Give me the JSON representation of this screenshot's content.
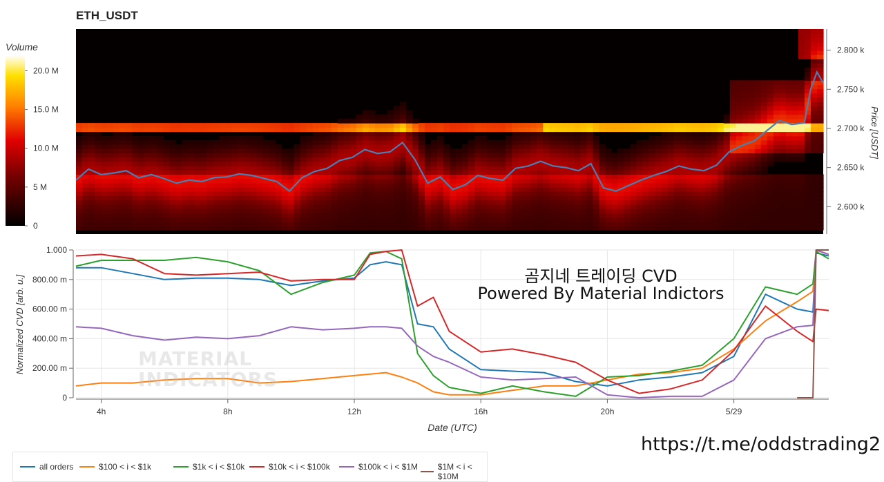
{
  "header": {
    "title": "ETH_USDT"
  },
  "overlay": {
    "line1": "곰지네 트레이딩 CVD",
    "line2": "Powered By Material Indictors",
    "url": "https://t.me/oddstrading2",
    "watermark_line1": "MATERIAL",
    "watermark_line2": "INDICATORS"
  },
  "colors": {
    "all_orders": "#1f77b4",
    "s100_1k": "#ff7f0e",
    "s1k_10k": "#2ca02c",
    "s10k_100k": "#d62728",
    "s100k_1M": "#9467bd",
    "s1M_10M": "#8c564b",
    "price_line": "#4a7fb5"
  },
  "chart_data": [
    {
      "type": "heatmap",
      "title": "ETH_USDT",
      "colorbar": {
        "label": "Volume",
        "ticks": [
          "20.0 M",
          "15.0 M",
          "10.0 M",
          "5 M",
          "0"
        ],
        "tick_values": [
          20000000,
          15000000,
          10000000,
          5000000,
          0
        ],
        "range": [
          0,
          22000000
        ]
      },
      "y_axis": {
        "label": "Price [USDT]",
        "ticks": [
          "2.800 k",
          "2.750 k",
          "2.700 k",
          "2.650 k",
          "2.600 k"
        ],
        "tick_values": [
          2800,
          2750,
          2700,
          2650,
          2600
        ],
        "range": [
          2565,
          2827
        ]
      },
      "x_range_hours": [
        3.2,
        27.0
      ],
      "price_series": {
        "x": [
          3.2,
          3.6,
          4.0,
          4.4,
          4.8,
          5.2,
          5.6,
          6.0,
          6.4,
          6.8,
          7.2,
          7.6,
          8.0,
          8.4,
          8.8,
          9.2,
          9.6,
          10.0,
          10.4,
          10.8,
          11.2,
          11.6,
          12.0,
          12.4,
          12.8,
          13.2,
          13.6,
          14.0,
          14.4,
          14.8,
          15.2,
          15.6,
          16.0,
          16.4,
          16.8,
          17.2,
          17.6,
          18.0,
          18.4,
          18.8,
          19.2,
          19.6,
          20.0,
          20.4,
          20.8,
          21.2,
          21.6,
          22.0,
          22.4,
          22.8,
          23.2,
          23.6,
          24.0,
          24.4,
          24.8,
          25.2,
          25.6,
          26.0,
          26.4,
          26.6,
          26.8,
          27.0
        ],
        "y": [
          2634,
          2648,
          2641,
          2643,
          2646,
          2637,
          2641,
          2636,
          2630,
          2634,
          2632,
          2637,
          2638,
          2642,
          2640,
          2636,
          2632,
          2620,
          2637,
          2645,
          2649,
          2659,
          2663,
          2673,
          2668,
          2670,
          2682,
          2660,
          2630,
          2638,
          2622,
          2628,
          2640,
          2636,
          2634,
          2649,
          2652,
          2658,
          2652,
          2650,
          2646,
          2655,
          2624,
          2620,
          2627,
          2634,
          2640,
          2645,
          2652,
          2648,
          2646,
          2653,
          2670,
          2678,
          2684,
          2697,
          2710,
          2705,
          2707,
          2750,
          2772,
          2758
        ]
      }
    },
    {
      "type": "line",
      "xlabel": "Date (UTC)",
      "ylabel": "Normalized CVD [arb. u.]",
      "x_ticks": [
        "4h",
        "8h",
        "12h",
        "16h",
        "20h",
        "5/29"
      ],
      "x_tick_values": [
        4,
        8,
        12,
        16,
        20,
        24
      ],
      "y_ticks": [
        "1.000",
        "800.00 m",
        "600.00 m",
        "400.00 m",
        "200.00 m",
        "0"
      ],
      "y_tick_values": [
        1.0,
        0.8,
        0.6,
        0.4,
        0.2,
        0
      ],
      "ylim": [
        0,
        1.0
      ],
      "xlim": [
        3.2,
        27.0
      ],
      "x": [
        3.2,
        4.0,
        5.0,
        6.0,
        7.0,
        8.0,
        9.0,
        10.0,
        11.0,
        12.0,
        12.5,
        13.0,
        13.5,
        14.0,
        14.5,
        15.0,
        16.0,
        17.0,
        18.0,
        19.0,
        20.0,
        21.0,
        22.0,
        23.0,
        24.0,
        25.0,
        26.0,
        26.5,
        26.6,
        27.0
      ],
      "series": [
        {
          "name": "all orders",
          "values": [
            0.88,
            0.88,
            0.84,
            0.8,
            0.81,
            0.81,
            0.8,
            0.76,
            0.79,
            0.81,
            0.9,
            0.92,
            0.9,
            0.5,
            0.48,
            0.33,
            0.19,
            0.18,
            0.17,
            0.11,
            0.08,
            0.12,
            0.14,
            0.17,
            0.28,
            0.7,
            0.6,
            0.58,
            0.98,
            0.96
          ]
        },
        {
          "name": "$100 < i < $1k",
          "values": [
            0.08,
            0.1,
            0.1,
            0.12,
            0.13,
            0.13,
            0.1,
            0.11,
            0.13,
            0.15,
            0.16,
            0.17,
            0.14,
            0.1,
            0.04,
            0.02,
            0.02,
            0.05,
            0.08,
            0.08,
            0.12,
            0.16,
            0.17,
            0.2,
            0.33,
            0.52,
            0.65,
            0.72,
            1.0,
            0.97
          ]
        },
        {
          "name": "$1k < i < $10k",
          "values": [
            0.89,
            0.93,
            0.93,
            0.93,
            0.95,
            0.92,
            0.86,
            0.7,
            0.78,
            0.83,
            0.98,
            0.99,
            0.94,
            0.3,
            0.15,
            0.07,
            0.03,
            0.08,
            0.04,
            0.01,
            0.14,
            0.15,
            0.18,
            0.22,
            0.4,
            0.75,
            0.7,
            0.77,
            0.99,
            0.94
          ]
        },
        {
          "name": "$10k < i < $100k",
          "values": [
            0.96,
            0.97,
            0.94,
            0.84,
            0.83,
            0.84,
            0.85,
            0.79,
            0.8,
            0.8,
            0.97,
            0.99,
            1.0,
            0.62,
            0.68,
            0.45,
            0.31,
            0.33,
            0.29,
            0.24,
            0.12,
            0.03,
            0.06,
            0.12,
            0.32,
            0.62,
            0.45,
            0.38,
            0.6,
            0.59
          ]
        },
        {
          "name": "$100k < i < $1M",
          "values": [
            0.48,
            0.47,
            0.42,
            0.39,
            0.41,
            0.4,
            0.42,
            0.48,
            0.46,
            0.47,
            0.48,
            0.48,
            0.47,
            0.35,
            0.28,
            0.24,
            0.14,
            0.12,
            0.13,
            0.14,
            0.02,
            0.0,
            0.01,
            0.01,
            0.12,
            0.4,
            0.48,
            0.49,
            1.0,
            0.97
          ]
        },
        {
          "name": "$1M < i < $10M",
          "values": [
            null,
            null,
            null,
            null,
            null,
            null,
            null,
            null,
            null,
            null,
            null,
            null,
            null,
            null,
            null,
            null,
            null,
            null,
            null,
            null,
            null,
            null,
            null,
            null,
            null,
            null,
            0.0,
            0.0,
            1.0,
            1.0
          ]
        }
      ]
    }
  ],
  "legend": [
    {
      "label": "all orders",
      "color": "#1f77b4"
    },
    {
      "label": "$100 < i < $1k",
      "color": "#ff7f0e"
    },
    {
      "label": "$1k < i < $10k",
      "color": "#2ca02c"
    },
    {
      "label": "$10k < i < $100k",
      "color": "#d62728"
    },
    {
      "label": "$100k < i < $1M",
      "color": "#9467bd"
    },
    {
      "label": "$1M < i < $10M",
      "color": "#8c564b"
    }
  ]
}
